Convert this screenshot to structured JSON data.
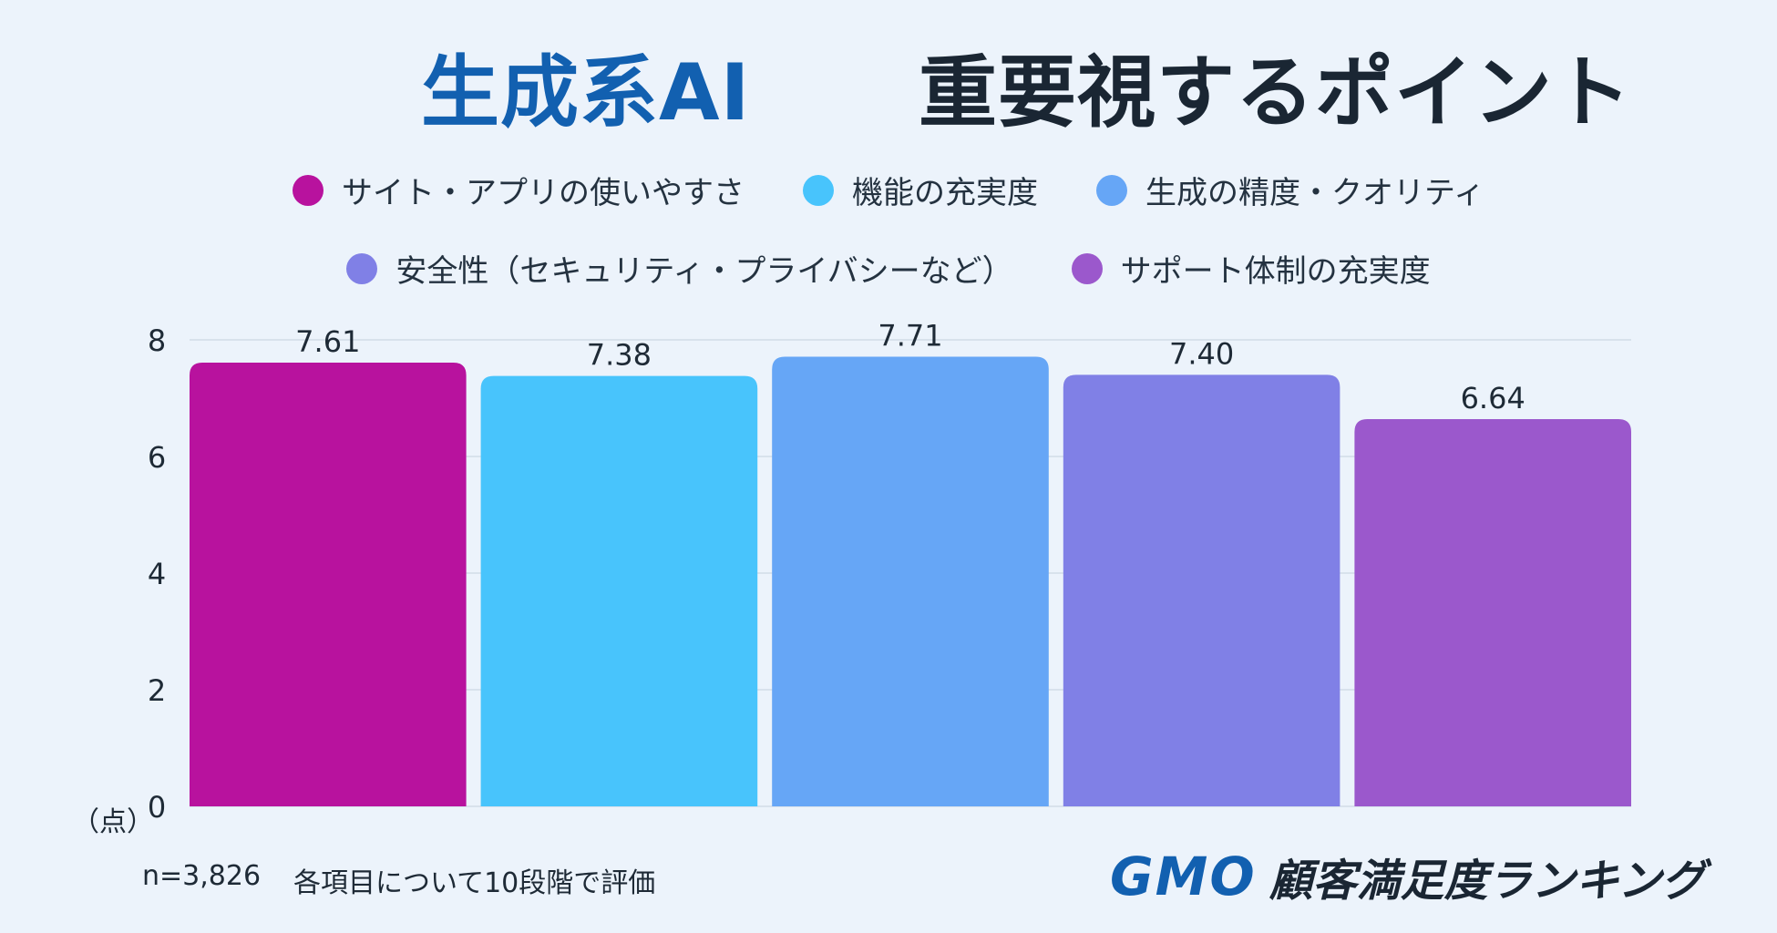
{
  "title": {
    "part1": "生成系AI",
    "part2": "重要視するポイント"
  },
  "chart_data": {
    "type": "bar",
    "categories": [
      "サイト・アプリの使いやすさ",
      "機能の充実度",
      "生成の精度・クオリティ",
      "安全性（セキュリティ・プライバシーなど）",
      "サポート体制の充実度"
    ],
    "values": [
      7.61,
      7.38,
      7.71,
      7.4,
      6.64
    ],
    "value_labels": [
      "7.61",
      "7.38",
      "7.71",
      "7.40",
      "6.64"
    ],
    "colors": [
      "#b8129e",
      "#48c4fc",
      "#66a6f6",
      "#8080e6",
      "#9b58cc"
    ],
    "y_ticks": [
      "0",
      "2",
      "4",
      "6",
      "8"
    ],
    "ylim": [
      0,
      8
    ],
    "ylabel": "（点）",
    "grid": true,
    "legend_placement": "top"
  },
  "footnote": {
    "n": "n=3,826",
    "description": "各項目について10段階で評価"
  },
  "logo": {
    "mark": "GMO",
    "text": "顧客満足度ランキング"
  }
}
